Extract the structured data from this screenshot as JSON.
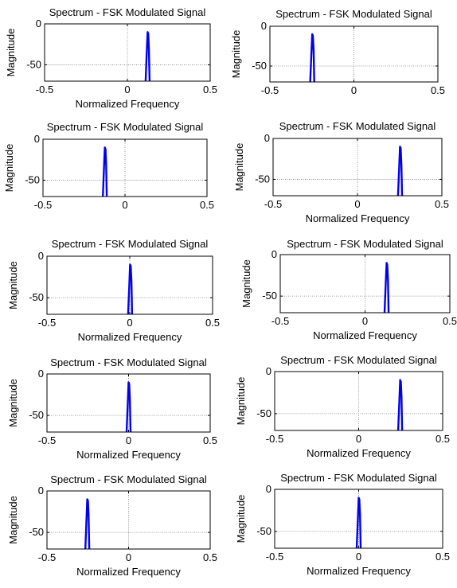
{
  "colors": {
    "line": "#0000ee",
    "axis": "#000000",
    "grid": "#808080"
  },
  "charts": [
    {
      "title": "Spectrum - FSK Modulated Signal",
      "xlabel": "Normalized Frequency",
      "ylabel": "Magnitude"
    },
    {
      "title": "Spectrum - FSK Modulated Signal",
      "xlabel": "",
      "ylabel": "Magnitude"
    },
    {
      "title": "Spectrum - FSK Modulated Signal",
      "xlabel": "",
      "ylabel": "Magnitude"
    },
    {
      "title": "Spectrum - FSK Modulated Signal",
      "xlabel": "Normalized Frequency",
      "ylabel": "Magnitude"
    },
    {
      "title": "Spectrum - FSK Modulated Signal",
      "xlabel": "Normalized Frequency",
      "ylabel": "Magnitude"
    },
    {
      "title": "Spectrum - FSK Modulated Signal",
      "xlabel": "Normalized Frequency",
      "ylabel": "Magnitude"
    },
    {
      "title": "Spectrum - FSK Modulated Signal",
      "xlabel": "Normalized Frequency",
      "ylabel": "Magnitude"
    },
    {
      "title": "Spectrum - FSK Modulated Signal",
      "xlabel": "Normalized Frequency",
      "ylabel": "Magnitude"
    },
    {
      "title": "Spectrum - FSK Modulated Signal",
      "xlabel": "Normalized Frequency",
      "ylabel": "Magnitude"
    },
    {
      "title": "Spectrum - FSK Modulated Signal",
      "xlabel": "Normalized Frequency",
      "ylabel": "Magnitude"
    }
  ],
  "chart_data": [
    {
      "type": "line",
      "xlim": [
        -0.5,
        0.5
      ],
      "ylim": [
        -70,
        0
      ],
      "xticks": [
        "-0.5",
        "0",
        "0.5"
      ],
      "yticks": [
        "0",
        "-50"
      ],
      "grid": true,
      "series": [
        {
          "x": [
            0.11,
            0.118,
            0.122,
            0.126,
            0.13,
            0.134
          ],
          "y": [
            -70,
            -30,
            -10,
            -12,
            -30,
            -70
          ]
        }
      ]
    },
    {
      "type": "line",
      "xlim": [
        -0.5,
        0.5
      ],
      "ylim": [
        -70,
        0
      ],
      "xticks": [
        "-0.5",
        "0",
        "0.5"
      ],
      "yticks": [
        "0",
        "-50"
      ],
      "grid": true,
      "series": [
        {
          "x": [
            -0.26,
            -0.252,
            -0.248,
            -0.244,
            -0.24,
            -0.236
          ],
          "y": [
            -70,
            -30,
            -10,
            -12,
            -30,
            -70
          ]
        }
      ]
    },
    {
      "type": "line",
      "xlim": [
        -0.5,
        0.5
      ],
      "ylim": [
        -70,
        0
      ],
      "xticks": [
        "-0.5",
        "0",
        "0.5"
      ],
      "yticks": [
        "0",
        "-50"
      ],
      "grid": true,
      "series": [
        {
          "x": [
            -0.135,
            -0.127,
            -0.123,
            -0.119,
            -0.115,
            -0.111
          ],
          "y": [
            -70,
            -30,
            -10,
            -12,
            -30,
            -70
          ]
        }
      ]
    },
    {
      "type": "line",
      "xlim": [
        -0.5,
        0.5
      ],
      "ylim": [
        -70,
        0
      ],
      "xticks": [
        "-0.5",
        "0",
        "0.5"
      ],
      "yticks": [
        "0",
        "-50"
      ],
      "grid": true,
      "series": [
        {
          "x": [
            0.24,
            0.248,
            0.252,
            0.256,
            0.26,
            0.264
          ],
          "y": [
            -70,
            -30,
            -10,
            -12,
            -30,
            -70
          ]
        }
      ]
    },
    {
      "type": "line",
      "xlim": [
        -0.5,
        0.5
      ],
      "ylim": [
        -70,
        0
      ],
      "xticks": [
        "-0.5",
        "0",
        "0.5"
      ],
      "yticks": [
        "0",
        "-50"
      ],
      "grid": true,
      "series": [
        {
          "x": [
            -0.01,
            -0.002,
            0.002,
            0.006,
            0.01,
            0.014
          ],
          "y": [
            -70,
            -30,
            -10,
            -12,
            -30,
            -70
          ]
        }
      ]
    },
    {
      "type": "line",
      "xlim": [
        -0.5,
        0.5
      ],
      "ylim": [
        -70,
        0
      ],
      "xticks": [
        "-0.5",
        "0",
        "0.5"
      ],
      "yticks": [
        "0",
        "-50"
      ],
      "grid": true,
      "series": [
        {
          "x": [
            0.115,
            0.123,
            0.127,
            0.131,
            0.135,
            0.139
          ],
          "y": [
            -70,
            -30,
            -10,
            -12,
            -30,
            -70
          ]
        }
      ]
    },
    {
      "type": "line",
      "xlim": [
        -0.5,
        0.5
      ],
      "ylim": [
        -70,
        0
      ],
      "xticks": [
        "-0.5",
        "0",
        "0.5"
      ],
      "yticks": [
        "0",
        "-50"
      ],
      "grid": true,
      "series": [
        {
          "x": [
            -0.012,
            -0.004,
            0.0,
            0.004,
            0.008,
            0.012
          ],
          "y": [
            -70,
            -30,
            -10,
            -12,
            -30,
            -70
          ]
        }
      ]
    },
    {
      "type": "line",
      "xlim": [
        -0.5,
        0.5
      ],
      "ylim": [
        -70,
        0
      ],
      "xticks": [
        "-0.5",
        "0",
        "0.5"
      ],
      "yticks": [
        "0",
        "-50"
      ],
      "grid": true,
      "series": [
        {
          "x": [
            0.235,
            0.243,
            0.247,
            0.251,
            0.255,
            0.259
          ],
          "y": [
            -70,
            -30,
            -10,
            -12,
            -30,
            -70
          ]
        }
      ]
    },
    {
      "type": "line",
      "xlim": [
        -0.5,
        0.5
      ],
      "ylim": [
        -70,
        0
      ],
      "xticks": [
        "-0.5",
        "0",
        "0.5"
      ],
      "yticks": [
        "0",
        "-50"
      ],
      "grid": true,
      "series": [
        {
          "x": [
            -0.265,
            -0.257,
            -0.253,
            -0.249,
            -0.245,
            -0.241
          ],
          "y": [
            -70,
            -30,
            -10,
            -12,
            -30,
            -70
          ]
        }
      ]
    },
    {
      "type": "line",
      "xlim": [
        -0.5,
        0.5
      ],
      "ylim": [
        -70,
        0
      ],
      "xticks": [
        "-0.5",
        "0",
        "0.5"
      ],
      "yticks": [
        "0",
        "-50"
      ],
      "grid": true,
      "series": [
        {
          "x": [
            -0.012,
            -0.004,
            0.0,
            0.004,
            0.008,
            0.012
          ],
          "y": [
            -70,
            -30,
            -10,
            -12,
            -30,
            -70
          ]
        }
      ]
    }
  ]
}
